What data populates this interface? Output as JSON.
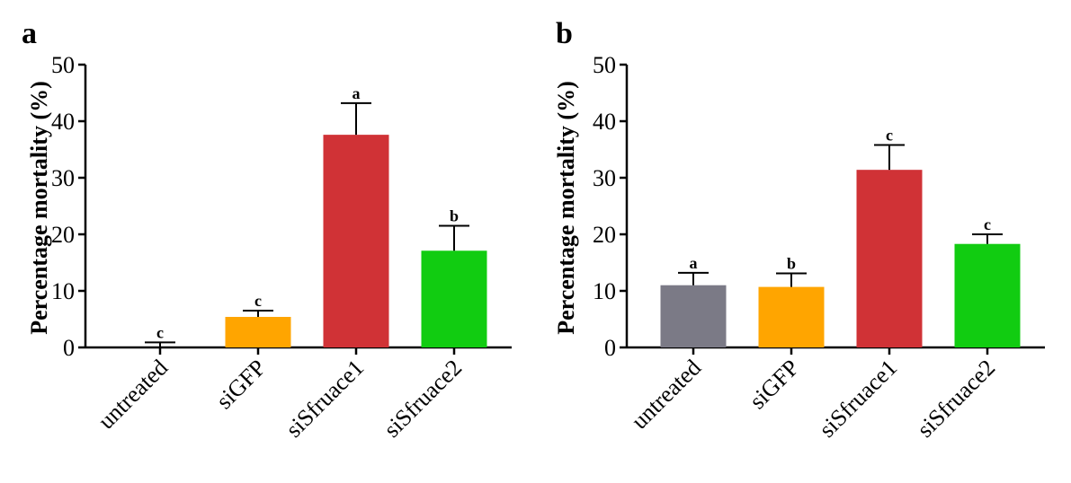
{
  "chart_data": [
    {
      "panel": "a",
      "type": "bar",
      "ylabel": "Percentage mortality (%)",
      "ylim": [
        0,
        50
      ],
      "yticks": [
        "0",
        "10",
        "20",
        "30",
        "40",
        "50"
      ],
      "categories": [
        "untreated",
        "siGFP",
        "siSfruace1",
        "siSfruace2"
      ],
      "values": [
        0.0,
        5.4,
        37.6,
        17.1
      ],
      "errors": [
        0.9,
        1.1,
        5.6,
        4.4
      ],
      "significance": [
        "c",
        "c",
        "a",
        "b"
      ],
      "colors": [
        "#7b7a86",
        "#ffa500",
        "#d03236",
        "#11cc11"
      ],
      "grid": false
    },
    {
      "panel": "b",
      "type": "bar",
      "ylabel": "Percentage mortality (%)",
      "ylim": [
        0,
        50
      ],
      "yticks": [
        "0",
        "10",
        "20",
        "30",
        "40",
        "50"
      ],
      "categories": [
        "untreated",
        "siGFP",
        "siSfruace1",
        "siSfruace2"
      ],
      "values": [
        11.0,
        10.7,
        31.4,
        18.3
      ],
      "errors": [
        2.2,
        2.4,
        4.4,
        1.7
      ],
      "significance": [
        "a",
        "b",
        "c",
        "c"
      ],
      "colors": [
        "#7b7a86",
        "#ffa500",
        "#d03236",
        "#11cc11"
      ],
      "grid": false
    }
  ]
}
